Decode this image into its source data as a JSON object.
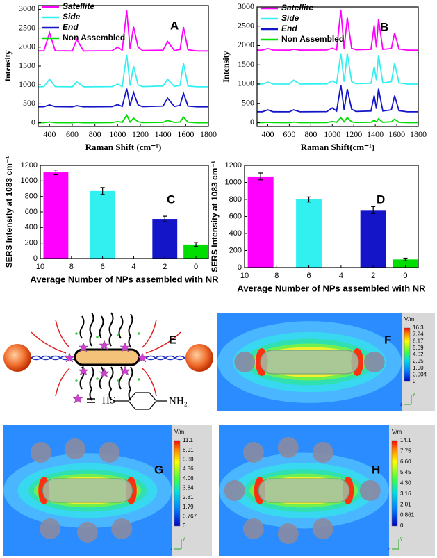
{
  "chart_data": [
    {
      "type": "line",
      "label": "A",
      "x_label": "Raman Shift (cm⁻¹)",
      "y_label": "Intensity",
      "x": [
        300,
        350,
        400,
        450,
        600,
        640,
        700,
        950,
        1000,
        1040,
        1080,
        1110,
        1140,
        1180,
        1220,
        1400,
        1440,
        1500,
        1550,
        1580,
        1620,
        1700,
        1800
      ],
      "xlim": [
        300,
        1800
      ],
      "xticks": [
        400,
        600,
        800,
        1000,
        1200,
        1400,
        1600,
        1800
      ],
      "ylim": [
        -100,
        3100
      ],
      "yticks": [
        0,
        500,
        1000,
        1500,
        2000,
        2500,
        3000
      ],
      "series": [
        {
          "name": "Satellite",
          "color": "#ff00ff",
          "values": [
            1900,
            1905,
            2380,
            1905,
            1900,
            2200,
            1900,
            1905,
            2000,
            1920,
            2970,
            1950,
            2540,
            2000,
            1910,
            1920,
            2150,
            1910,
            1940,
            2530,
            1930,
            1900,
            1900
          ]
        },
        {
          "name": "Side",
          "color": "#33f0f0",
          "values": [
            950,
            955,
            1150,
            955,
            950,
            1080,
            950,
            955,
            1020,
            960,
            1800,
            980,
            1500,
            1000,
            955,
            970,
            1150,
            960,
            990,
            1580,
            970,
            950,
            950
          ]
        },
        {
          "name": "End",
          "color": "#1414c8",
          "values": [
            420,
            422,
            470,
            425,
            420,
            450,
            420,
            425,
            480,
            430,
            900,
            450,
            800,
            470,
            425,
            440,
            650,
            430,
            460,
            780,
            440,
            420,
            420
          ]
        },
        {
          "name": "Non Assembled",
          "color": "#00dd00",
          "values": [
            0,
            2,
            20,
            2,
            0,
            10,
            0,
            3,
            30,
            10,
            200,
            20,
            120,
            25,
            5,
            10,
            60,
            10,
            20,
            150,
            15,
            0,
            0
          ]
        }
      ]
    },
    {
      "type": "line",
      "label": "B",
      "x_label": "Raman Shift(cm⁻¹)",
      "y_label": "Intensity",
      "x": [
        300,
        350,
        400,
        450,
        600,
        640,
        700,
        950,
        1000,
        1040,
        1080,
        1110,
        1140,
        1180,
        1220,
        1360,
        1390,
        1410,
        1430,
        1470,
        1550,
        1580,
        1620,
        1700,
        1800
      ],
      "xlim": [
        300,
        1800
      ],
      "xticks": [
        400,
        600,
        800,
        1000,
        1200,
        1400,
        1600,
        1800
      ],
      "ylim": [
        -100,
        3000
      ],
      "yticks": [
        0,
        500,
        1000,
        1500,
        2000,
        2500,
        3000
      ],
      "series": [
        {
          "name": "Satellite",
          "color": "#ff00ff",
          "values": [
            1880,
            1882,
            1920,
            1882,
            1880,
            1900,
            1880,
            1885,
            1930,
            1890,
            2930,
            1920,
            2720,
            1930,
            1890,
            1900,
            2520,
            1950,
            2680,
            1900,
            1920,
            2330,
            1910,
            1880,
            1880
          ]
        },
        {
          "name": "Side",
          "color": "#33f0f0",
          "values": [
            1000,
            1002,
            1050,
            1002,
            1000,
            1100,
            1000,
            1005,
            1080,
            1020,
            1800,
            1060,
            1800,
            1060,
            1010,
            1020,
            1450,
            1100,
            1750,
            1030,
            1060,
            1550,
            1030,
            1000,
            1000
          ]
        },
        {
          "name": "End",
          "color": "#1414c8",
          "values": [
            280,
            282,
            330,
            282,
            280,
            330,
            280,
            285,
            380,
            300,
            980,
            330,
            870,
            350,
            290,
            300,
            700,
            360,
            880,
            300,
            330,
            700,
            310,
            280,
            280
          ]
        },
        {
          "name": "Non Assembled",
          "color": "#00dd00",
          "values": [
            0,
            2,
            10,
            2,
            0,
            15,
            0,
            3,
            30,
            10,
            130,
            20,
            130,
            20,
            5,
            10,
            60,
            20,
            100,
            10,
            20,
            90,
            10,
            0,
            0
          ]
        }
      ]
    },
    {
      "type": "bar",
      "label": "C",
      "x_label": "Average Number of NPs assembled with NR",
      "y_label": "SERS Intensity at 1083 cm⁻¹",
      "x": [
        9,
        6,
        2,
        0
      ],
      "values": [
        1110,
        870,
        510,
        180
      ],
      "errors": [
        30,
        45,
        35,
        25
      ],
      "colors": [
        "#ff00ff",
        "#33f0f0",
        "#1414c8",
        "#00dd00"
      ],
      "xlim": [
        10,
        -0.8
      ],
      "xticks": [
        10,
        8,
        6,
        4,
        2,
        0
      ],
      "ylim": [
        0,
        1200
      ],
      "yticks": [
        0,
        200,
        400,
        600,
        800,
        1000,
        1200
      ]
    },
    {
      "type": "bar",
      "label": "D",
      "x_label": "Average Number of NPs assembled with NR",
      "y_label": "SERS Intensity at 1083 cm⁻¹",
      "x": [
        9,
        6,
        2,
        0
      ],
      "values": [
        1070,
        800,
        675,
        95
      ],
      "errors": [
        40,
        30,
        40,
        15
      ],
      "colors": [
        "#ff00ff",
        "#33f0f0",
        "#1414c8",
        "#00dd00"
      ],
      "xlim": [
        10,
        -0.8
      ],
      "xticks": [
        10,
        8,
        6,
        4,
        2,
        0
      ],
      "ylim": [
        0,
        1200
      ],
      "yticks": [
        0,
        200,
        400,
        600,
        800,
        1000,
        1200
      ]
    }
  ],
  "diagram": {
    "label": "E",
    "ligand_left": "HS",
    "ligand_right": "NH₂"
  },
  "field_maps": [
    {
      "label": "F",
      "unit": "V/m",
      "scale": [
        "16.3",
        "7.24",
        "6.17",
        "5.09",
        "4.02",
        "2.95",
        "1.00",
        "0.004",
        "0"
      ],
      "axis_up": "y",
      "axis_side": "z"
    },
    {
      "label": "G",
      "unit": "V/m",
      "scale": [
        "11.1",
        "6.91",
        "5.88",
        "4.86",
        "4.06",
        "3.84",
        "2.81",
        "1.79",
        "0.767",
        "0"
      ],
      "axis_up": "y",
      "axis_side": "z"
    },
    {
      "label": "H",
      "unit": "V/m",
      "scale": [
        "14.1",
        "7.75",
        "6.60",
        "5.45",
        "4.30",
        "3.16",
        "2.01",
        "0.861",
        "0"
      ],
      "axis_up": "y",
      "axis_side": "z"
    }
  ]
}
